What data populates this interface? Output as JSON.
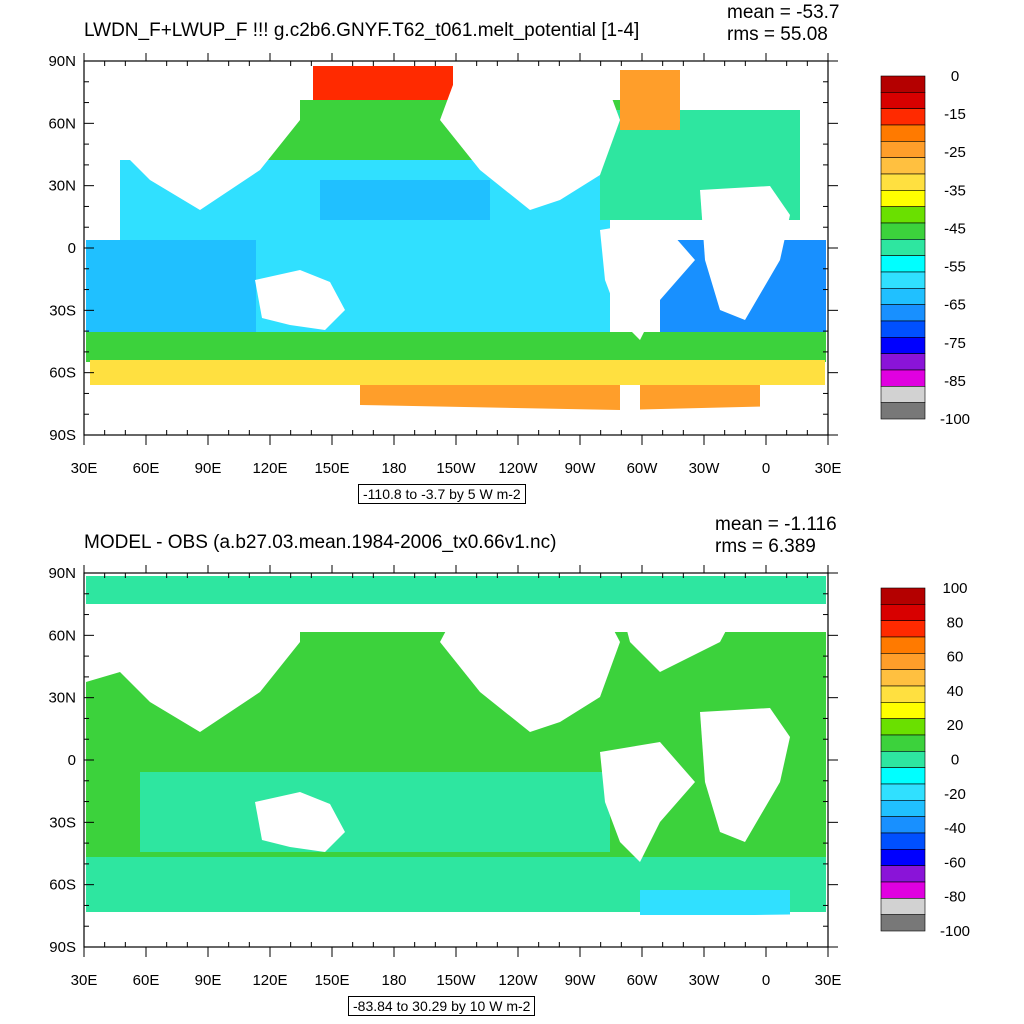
{
  "panels": [
    {
      "title": "LWDN_F+LWUP_F !!!  g.c2b6.GNYF.T62_t061.melt_potential [1-4]",
      "mean": "mean = -53.7",
      "rms": "rms = 55.08",
      "range_note": "-110.8 to -3.7 by 5 W m-2",
      "lat_labels": [
        "90N",
        "60N",
        "30N",
        "0",
        "30S",
        "60S",
        "90S"
      ],
      "lon_labels": [
        "30E",
        "60E",
        "90E",
        "120E",
        "150E",
        "180",
        "150W",
        "120W",
        "90W",
        "60W",
        "30W",
        "0",
        "30E"
      ],
      "colorbar": {
        "colors": [
          "#b40000",
          "#d80000",
          "#ff2a00",
          "#ff7a00",
          "#ff9e2a",
          "#ffc040",
          "#ffe040",
          "#ffff00",
          "#6ae000",
          "#3cd23c",
          "#2ee6a0",
          "#00ffff",
          "#30e0ff",
          "#20c0ff",
          "#1890ff",
          "#0050ff",
          "#0000ff",
          "#8a14d8",
          "#e000e0",
          "#d2d2d2",
          "#787878"
        ],
        "labels": [
          "0",
          "-15",
          "-25",
          "-35",
          "-45",
          "-55",
          "-65",
          "-75",
          "-85",
          "-100"
        ]
      }
    },
    {
      "title": "MODEL - OBS (a.b27.03.mean.1984-2006_tx0.66v1.nc)",
      "mean": "mean = -1.116",
      "rms": "rms = 6.389",
      "range_note": "-83.84 to 30.29 by 10 W m-2",
      "lat_labels": [
        "90N",
        "60N",
        "30N",
        "0",
        "30S",
        "60S",
        "90S"
      ],
      "lon_labels": [
        "30E",
        "60E",
        "90E",
        "120E",
        "150E",
        "180",
        "150W",
        "120W",
        "90W",
        "60W",
        "30W",
        "0",
        "30E"
      ],
      "colorbar": {
        "colors": [
          "#b40000",
          "#d80000",
          "#ff2a00",
          "#ff7a00",
          "#ff9e2a",
          "#ffc040",
          "#ffe040",
          "#ffff00",
          "#6ae000",
          "#3cd23c",
          "#2ee6a0",
          "#00ffff",
          "#30e0ff",
          "#20c0ff",
          "#1890ff",
          "#0050ff",
          "#0000ff",
          "#8a14d8",
          "#e000e0",
          "#d2d2d2",
          "#787878"
        ],
        "labels": [
          "100",
          "80",
          "60",
          "40",
          "20",
          "0",
          "-20",
          "-40",
          "-60",
          "-80",
          "-100"
        ]
      }
    }
  ]
}
